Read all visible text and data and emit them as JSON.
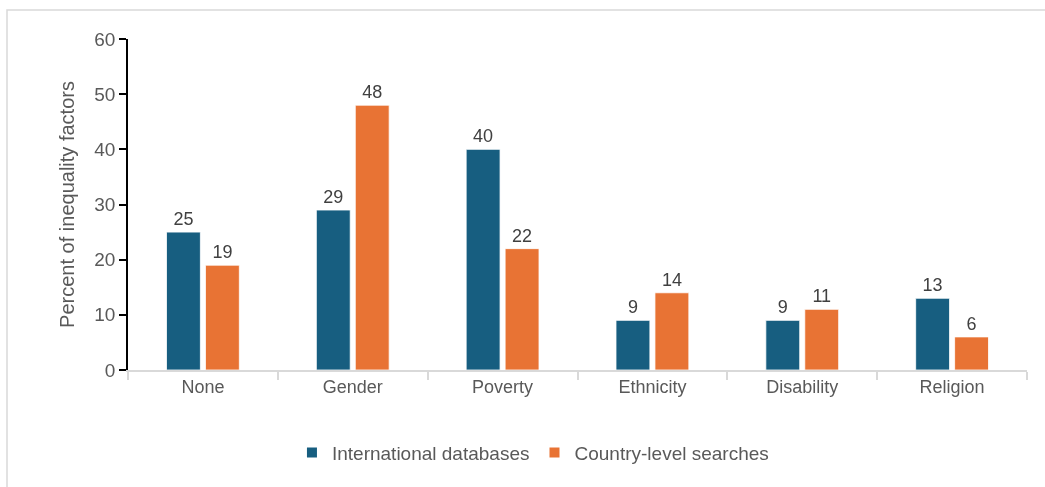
{
  "chart_data": {
    "type": "bar",
    "categories": [
      "None",
      "Gender",
      "Poverty",
      "Ethnicity",
      "Disability",
      "Religion"
    ],
    "series": [
      {
        "name": "International databases",
        "color": "#175e80",
        "values": [
          25,
          29,
          40,
          9,
          9,
          13
        ]
      },
      {
        "name": "Country-level searches",
        "color": "#e87334",
        "values": [
          19,
          48,
          22,
          14,
          11,
          6
        ]
      }
    ],
    "ylabel": "Percent of inequality factors",
    "ylim": [
      0,
      60
    ],
    "yticks": [
      0,
      10,
      20,
      30,
      40,
      50,
      60
    ],
    "data_labels": true,
    "grid": false,
    "legend": "bottom"
  }
}
